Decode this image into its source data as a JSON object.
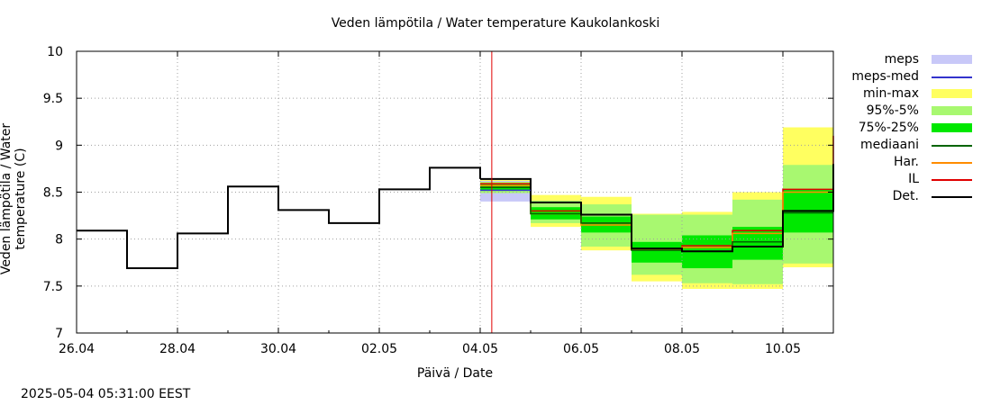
{
  "timestamp": "2025-05-04 05:31:00 EEST",
  "chart_data": {
    "type": "line",
    "title": "Veden lämpötila / Water temperature Kaukolankoski",
    "xlabel": "Päivä / Date",
    "ylabel": "Veden lämpötila / Water temperature (C)",
    "x_axis": {
      "min": "2025-04-26",
      "max": "2025-05-11",
      "tick_labels": [
        "26.04",
        "28.04",
        "30.04",
        "02.05",
        "04.05",
        "06.05",
        "08.05",
        "10.05"
      ],
      "tick_dates": [
        "2025-04-26",
        "2025-04-28",
        "2025-04-30",
        "2025-05-02",
        "2025-05-04",
        "2025-05-06",
        "2025-05-08",
        "2025-05-10"
      ]
    },
    "y_axis": {
      "min": 7,
      "max": 10,
      "ticks": [
        7,
        7.5,
        8,
        8.5,
        9,
        9.5,
        10
      ],
      "tick_labels": [
        "7",
        "7.5",
        "8",
        "8.5",
        "9",
        "9.5",
        "10"
      ]
    },
    "grid": true,
    "now_marker": "2025-05-04 05:31",
    "legend": [
      {
        "label": "meps",
        "kind": "box",
        "color": "#c8c8f8"
      },
      {
        "label": "meps-med",
        "kind": "line",
        "color": "#3333cc"
      },
      {
        "label": "min-max",
        "kind": "box",
        "color": "#ffff60"
      },
      {
        "label": "95%-5%",
        "kind": "box",
        "color": "#a8f870"
      },
      {
        "label": "75%-25%",
        "kind": "box",
        "color": "#00e800"
      },
      {
        "label": "mediaani",
        "kind": "line",
        "color": "#006400"
      },
      {
        "label": "Har.",
        "kind": "line",
        "color": "#ff8c00"
      },
      {
        "label": "IL",
        "kind": "line",
        "color": "#e00000"
      },
      {
        "label": "Det.",
        "kind": "line",
        "color": "#000000"
      }
    ],
    "series": [
      {
        "name": "Det.",
        "color": "#000000",
        "steps": [
          [
            "2025-04-26",
            8.09
          ],
          [
            "2025-04-27",
            7.69
          ],
          [
            "2025-04-28",
            8.06
          ],
          [
            "2025-04-29",
            8.56
          ],
          [
            "2025-04-30",
            8.31
          ],
          [
            "2025-05-01",
            8.17
          ],
          [
            "2025-05-02",
            8.53
          ],
          [
            "2025-05-03",
            8.76
          ],
          [
            "2025-05-04",
            8.64
          ]
        ]
      },
      {
        "name": "IL",
        "color": "#e00000",
        "steps": [
          [
            "2025-05-04",
            8.59
          ],
          [
            "2025-05-05",
            8.3
          ],
          [
            "2025-05-06",
            8.17
          ],
          [
            "2025-05-07",
            7.89
          ],
          [
            "2025-05-08",
            7.93
          ],
          [
            "2025-05-09",
            8.09
          ],
          [
            "2025-05-10",
            8.53
          ],
          [
            "2025-05-11",
            9.1
          ]
        ]
      },
      {
        "name": "Har.",
        "color": "#ff8c00",
        "steps": [
          [
            "2025-05-04",
            8.57
          ],
          [
            "2025-05-05",
            8.27
          ],
          [
            "2025-05-06",
            8.15
          ],
          [
            "2025-05-07",
            7.89
          ],
          [
            "2025-05-08",
            7.91
          ],
          [
            "2025-05-09",
            8.06
          ],
          [
            "2025-05-10",
            8.5
          ]
        ]
      },
      {
        "name": "mediaani",
        "color": "#006400",
        "steps": [
          [
            "2025-05-04",
            8.55
          ],
          [
            "2025-05-05",
            8.27
          ],
          [
            "2025-05-06",
            8.17
          ],
          [
            "2025-05-07",
            7.88
          ],
          [
            "2025-05-08",
            7.87
          ],
          [
            "2025-05-09",
            7.97
          ],
          [
            "2025-05-10",
            8.28
          ]
        ]
      },
      {
        "name": "Det. forecast",
        "color": "#000000",
        "steps": [
          [
            "2025-05-04",
            8.64
          ],
          [
            "2025-05-05",
            8.39
          ],
          [
            "2025-05-06",
            8.26
          ],
          [
            "2025-05-07",
            7.9
          ],
          [
            "2025-05-08",
            7.87
          ],
          [
            "2025-05-09",
            7.92
          ],
          [
            "2025-05-10",
            8.3
          ],
          [
            "2025-05-11",
            8.8
          ]
        ]
      },
      {
        "name": "meps-med",
        "color": "#3333cc",
        "steps": [
          [
            "2025-05-04",
            8.52
          ]
        ]
      }
    ],
    "bands": [
      {
        "name": "meps",
        "color": "#c8c8f8",
        "steps": [
          [
            "2025-05-04",
            8.4,
            8.62
          ]
        ]
      },
      {
        "name": "min-max",
        "color": "#ffff60",
        "steps": [
          [
            "2025-05-04",
            8.47,
            8.63
          ],
          [
            "2025-05-05",
            8.13,
            8.47
          ],
          [
            "2025-05-06",
            7.88,
            8.45
          ],
          [
            "2025-05-07",
            7.55,
            8.27
          ],
          [
            "2025-05-08",
            7.47,
            8.29
          ],
          [
            "2025-05-09",
            7.47,
            8.5
          ],
          [
            "2025-05-10",
            7.7,
            9.19
          ]
        ]
      },
      {
        "name": "95%-5%",
        "color": "#a8f870",
        "steps": [
          [
            "2025-05-04",
            8.49,
            8.61
          ],
          [
            "2025-05-05",
            8.17,
            8.41
          ],
          [
            "2025-05-06",
            7.92,
            8.37
          ],
          [
            "2025-05-07",
            7.62,
            8.26
          ],
          [
            "2025-05-08",
            7.53,
            8.26
          ],
          [
            "2025-05-09",
            7.52,
            8.42
          ],
          [
            "2025-05-10",
            7.74,
            8.79
          ]
        ]
      },
      {
        "name": "75%-25%",
        "color": "#00e800",
        "steps": [
          [
            "2025-05-04",
            8.52,
            8.59
          ],
          [
            "2025-05-05",
            8.21,
            8.34
          ],
          [
            "2025-05-06",
            8.07,
            8.24
          ],
          [
            "2025-05-07",
            7.75,
            7.97
          ],
          [
            "2025-05-08",
            7.69,
            8.04
          ],
          [
            "2025-05-09",
            7.78,
            8.13
          ],
          [
            "2025-05-10",
            8.07,
            8.53
          ]
        ]
      }
    ]
  }
}
